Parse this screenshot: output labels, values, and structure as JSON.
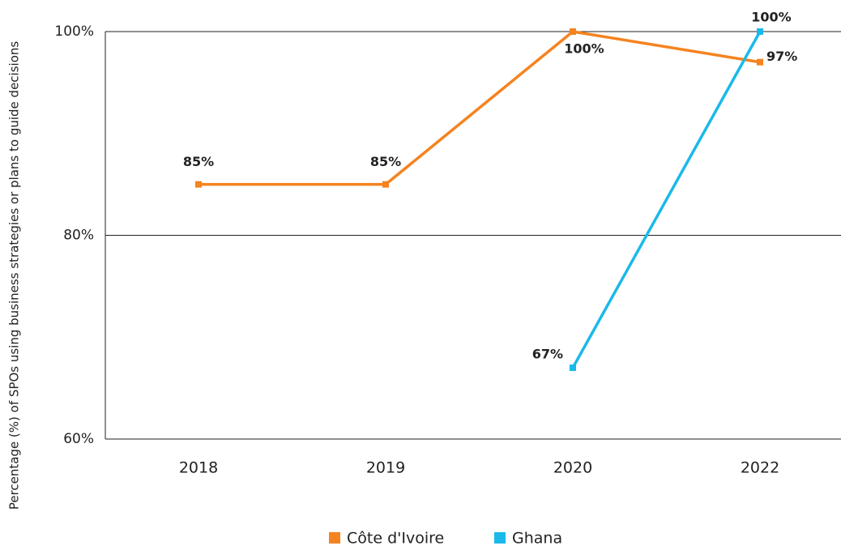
{
  "chart_data": {
    "type": "line",
    "y_label": "Percentage (%) of SPOs using business strategies or plans to guide decisions",
    "categories": [
      "2018",
      "2019",
      "2020",
      "2022"
    ],
    "series": [
      {
        "name": "Côte d'Ivoire",
        "color": "#f5831f",
        "values": [
          85,
          85,
          100,
          97
        ],
        "value_labels": [
          "85%",
          "85%",
          "100%",
          "97%"
        ]
      },
      {
        "name": "Ghana",
        "color": "#1ab9ea",
        "values": [
          null,
          null,
          67,
          100
        ],
        "value_labels": [
          null,
          null,
          "67%",
          "100%"
        ]
      }
    ],
    "ylim": [
      60,
      100
    ],
    "yticks": [
      {
        "value": 60,
        "label": "60%"
      },
      {
        "value": 80,
        "label": "80%"
      },
      {
        "value": 100,
        "label": "100%"
      }
    ],
    "grid": true,
    "legend": "bottom"
  }
}
